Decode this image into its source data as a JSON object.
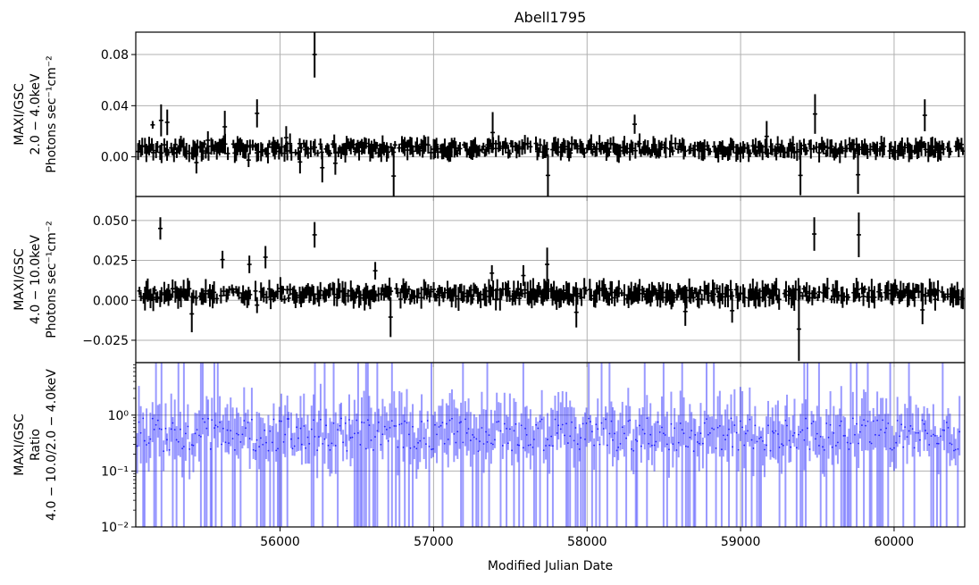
{
  "chart_data": {
    "title": "Abell1795",
    "xlabel": "Modified Julian Date",
    "xlim": [
      55060,
      60460
    ],
    "x_ticks": [
      {
        "v": 56000,
        "label": "56000"
      },
      {
        "v": 57000,
        "label": "57000"
      },
      {
        "v": 58000,
        "label": "58000"
      },
      {
        "v": 59000,
        "label": "59000"
      },
      {
        "v": 60000,
        "label": "60000"
      }
    ],
    "grid": true,
    "panels": [
      {
        "type": "line",
        "series_style": "errorbar",
        "ylabel_lines": [
          "MAXI/GSC",
          "2.0 − 4.0keV",
          "Photons sec⁻¹cm⁻²"
        ],
        "ylim": [
          -0.031,
          0.0975
        ],
        "scale": "linear",
        "y_ticks": [
          {
            "v": 0.0,
            "label": "0.00"
          },
          {
            "v": 0.04,
            "label": "0.04"
          },
          {
            "v": 0.08,
            "label": "0.08"
          }
        ],
        "color": "#000000",
        "data": [
          [
            55170,
            0.022,
            0.028
          ],
          [
            55225,
            0.016,
            0.041
          ],
          [
            55265,
            0.017,
            0.037
          ],
          [
            55455,
            0.004,
            -0.013
          ],
          [
            55530,
            0.006,
            0.02
          ],
          [
            55640,
            0.011,
            0.036
          ],
          [
            55795,
            0.003,
            -0.008
          ],
          [
            55850,
            0.023,
            0.045
          ],
          [
            56040,
            0.006,
            0.024
          ],
          [
            56130,
            0.005,
            -0.013
          ],
          [
            56225,
            0.062,
            0.098
          ],
          [
            56275,
            0.003,
            -0.02
          ],
          [
            56360,
            0.004,
            -0.014
          ],
          [
            56740,
            0.001,
            -0.031
          ],
          [
            57385,
            0.003,
            0.035
          ],
          [
            57745,
            0.002,
            -0.031
          ],
          [
            58310,
            0.018,
            0.033
          ],
          [
            59170,
            0.004,
            0.028
          ],
          [
            59390,
            0.001,
            -0.03
          ],
          [
            59485,
            0.018,
            0.049
          ],
          [
            59765,
            0.001,
            -0.029
          ],
          [
            60200,
            0.02,
            0.045
          ]
        ]
      },
      {
        "type": "line",
        "series_style": "errorbar",
        "ylabel_lines": [
          "MAXI/GSC",
          "4.0 − 10.0keV",
          "Photons sec⁻¹cm⁻²"
        ],
        "ylim": [
          -0.039,
          0.065
        ],
        "scale": "linear",
        "y_ticks": [
          {
            "v": -0.025,
            "label": "−0.025"
          },
          {
            "v": 0.0,
            "label": "0.000"
          },
          {
            "v": 0.025,
            "label": "0.025"
          },
          {
            "v": 0.05,
            "label": "0.050"
          }
        ],
        "color": "#000000",
        "data": [
          [
            55220,
            0.038,
            0.052
          ],
          [
            55425,
            0.003,
            -0.02
          ],
          [
            55625,
            0.02,
            0.031
          ],
          [
            55800,
            0.017,
            0.028
          ],
          [
            55850,
            0.002,
            -0.008
          ],
          [
            55905,
            0.02,
            0.034
          ],
          [
            56225,
            0.033,
            0.049
          ],
          [
            56620,
            0.013,
            0.024
          ],
          [
            56720,
            0.002,
            -0.023
          ],
          [
            57380,
            0.012,
            0.022
          ],
          [
            57585,
            0.009,
            0.022
          ],
          [
            57740,
            0.012,
            0.033
          ],
          [
            57930,
            0.002,
            -0.017
          ],
          [
            58640,
            0.002,
            -0.016
          ],
          [
            58945,
            0.001,
            -0.014
          ],
          [
            59380,
            0.002,
            -0.038
          ],
          [
            59480,
            0.031,
            0.052
          ],
          [
            59770,
            0.027,
            0.055
          ],
          [
            60185,
            0.003,
            -0.015
          ]
        ]
      },
      {
        "type": "scatter",
        "series_style": "errorbar",
        "ylabel_lines": [
          "MAXI/GSC",
          "Ratio",
          "4.0 − 10.0/2.0 − 4.0keV"
        ],
        "ylim": [
          0.01,
          8.7
        ],
        "scale": "log",
        "y_ticks": [
          {
            "v": 0.01,
            "label": "10⁻²"
          },
          {
            "v": 0.1,
            "label": "10⁻¹"
          },
          {
            "v": 1,
            "label": "10⁰"
          }
        ],
        "color": "#0000ff"
      }
    ]
  }
}
